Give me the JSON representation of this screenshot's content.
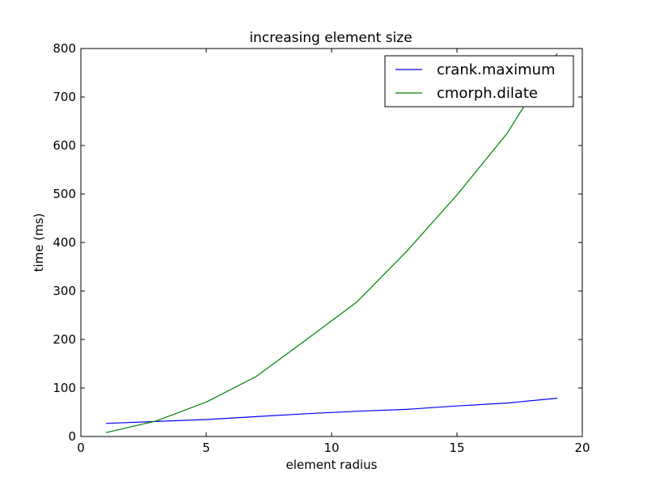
{
  "chart_data": {
    "type": "line",
    "title": "increasing element size",
    "xlabel": "element radius",
    "ylabel": "time (ms)",
    "xlim": [
      0,
      20
    ],
    "ylim": [
      0,
      800
    ],
    "xticks": [
      0,
      5,
      10,
      15,
      20
    ],
    "yticks": [
      0,
      100,
      200,
      300,
      400,
      500,
      600,
      700,
      800
    ],
    "grid": false,
    "legend_position": "top-right",
    "series": [
      {
        "name": "crank.maximum",
        "color": "#0000ff",
        "x": [
          1,
          3,
          5,
          7,
          9,
          11,
          13,
          15,
          17,
          19
        ],
        "y": [
          27,
          31,
          35,
          41,
          47,
          52,
          56,
          63,
          69,
          79
        ]
      },
      {
        "name": "cmorph.dilate",
        "color": "#008000",
        "x": [
          1,
          3,
          5,
          7,
          9,
          11,
          13,
          15,
          17,
          19
        ],
        "y": [
          8,
          32,
          71,
          124,
          200,
          277,
          382,
          498,
          625,
          790
        ]
      }
    ]
  }
}
